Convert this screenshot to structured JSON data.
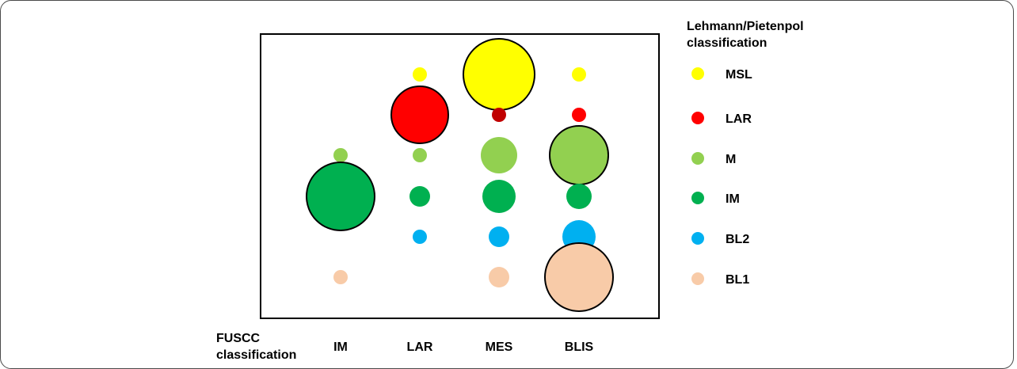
{
  "chart_data": {
    "type": "bubble",
    "xlabel": [
      "FUSCC",
      "classification"
    ],
    "categories": [
      "IM",
      "LAR",
      "MES",
      "BLIS"
    ],
    "legend": {
      "title": [
        "Lehmann/Pietenpol",
        "classification"
      ],
      "placement": "right",
      "entries": [
        {
          "name": "MSL",
          "color": "#ffff00"
        },
        {
          "name": "LAR",
          "color": "#ff0000"
        },
        {
          "name": "M",
          "color": "#92d050"
        },
        {
          "name": "IM",
          "color": "#00b050"
        },
        {
          "name": "BL2",
          "color": "#00b0f0"
        },
        {
          "name": "BL1",
          "color": "#f8cba8"
        }
      ]
    },
    "bubbles": [
      {
        "category": "IM",
        "subtype": "M",
        "size": 9,
        "outlined": false
      },
      {
        "category": "IM",
        "subtype": "IM",
        "size": 43,
        "outlined": true
      },
      {
        "category": "IM",
        "subtype": "BL1",
        "size": 9,
        "outlined": false
      },
      {
        "category": "LAR",
        "subtype": "MSL",
        "size": 9,
        "outlined": false
      },
      {
        "category": "LAR",
        "subtype": "LAR",
        "size": 36,
        "outlined": true
      },
      {
        "category": "LAR",
        "subtype": "M",
        "size": 9,
        "outlined": false
      },
      {
        "category": "LAR",
        "subtype": "IM",
        "size": 13,
        "outlined": false
      },
      {
        "category": "LAR",
        "subtype": "BL2",
        "size": 9,
        "outlined": false
      },
      {
        "category": "MES",
        "subtype": "MSL",
        "size": 45,
        "outlined": true
      },
      {
        "category": "MES",
        "subtype": "LAR",
        "size": 9,
        "outlined": false,
        "color": "#c00000"
      },
      {
        "category": "MES",
        "subtype": "M",
        "size": 23,
        "outlined": false
      },
      {
        "category": "MES",
        "subtype": "IM",
        "size": 21,
        "outlined": false
      },
      {
        "category": "MES",
        "subtype": "BL2",
        "size": 13,
        "outlined": false
      },
      {
        "category": "MES",
        "subtype": "BL1",
        "size": 13,
        "outlined": false
      },
      {
        "category": "BLIS",
        "subtype": "MSL",
        "size": 9,
        "outlined": false
      },
      {
        "category": "BLIS",
        "subtype": "LAR",
        "size": 9,
        "outlined": false
      },
      {
        "category": "BLIS",
        "subtype": "M",
        "size": 37,
        "outlined": true
      },
      {
        "category": "BLIS",
        "subtype": "IM",
        "size": 16,
        "outlined": false
      },
      {
        "category": "BLIS",
        "subtype": "BL2",
        "size": 21,
        "outlined": false
      },
      {
        "category": "BLIS",
        "subtype": "BL1",
        "size": 43,
        "outlined": true
      }
    ],
    "grid": false
  }
}
